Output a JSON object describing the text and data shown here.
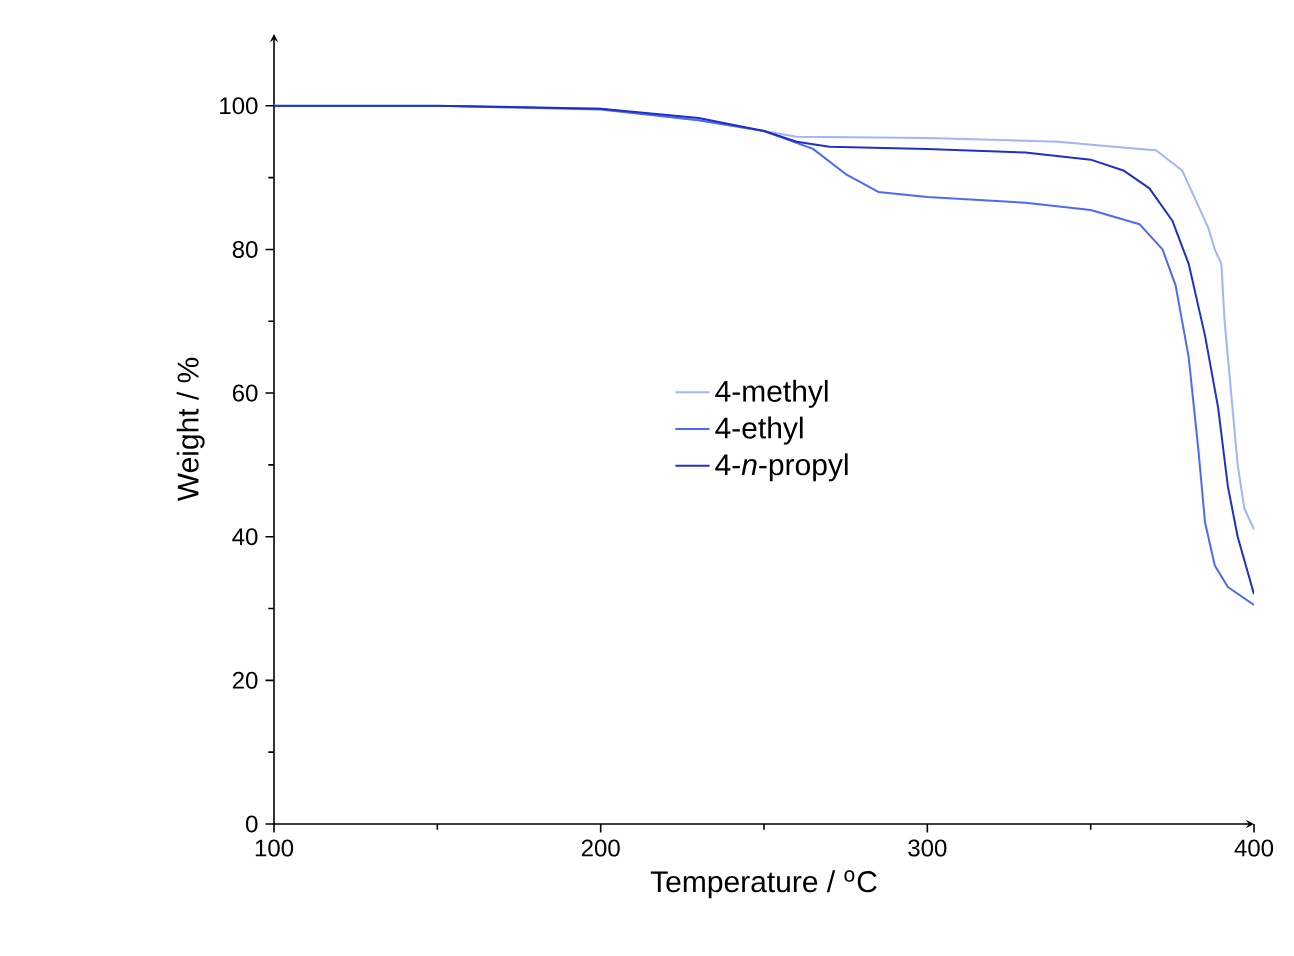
{
  "chart_data": {
    "type": "line",
    "xlabel": "Temperature / $^{o}$C",
    "ylabel": "Weight / %",
    "xlim": [
      100,
      400
    ],
    "ylim": [
      0,
      110
    ],
    "xticks": [
      100,
      200,
      300,
      400
    ],
    "yticks": [
      0,
      20,
      40,
      60,
      80,
      100
    ],
    "legend": "center",
    "grid": false,
    "marker": "none",
    "line_style": "solid",
    "series": [
      {
        "name": "4-methyl",
        "color": "#a3b3ff",
        "x": [
          100,
          150,
          200,
          230,
          250,
          260,
          300,
          340,
          365,
          370,
          378,
          382,
          386,
          388,
          390,
          391,
          393,
          395,
          397,
          400
        ],
        "values": [
          100,
          100,
          99.6,
          98,
          96.5,
          95.7,
          95.5,
          95,
          94,
          93.8,
          91,
          87,
          83,
          80,
          78,
          70,
          60,
          50,
          44,
          41
        ]
      },
      {
        "name": "4-ethyl",
        "color": "#4d6af5",
        "x": [
          100,
          150,
          200,
          230,
          250,
          265,
          275,
          285,
          300,
          330,
          350,
          365,
          372,
          376,
          380,
          383,
          385,
          388,
          392,
          400
        ],
        "values": [
          100,
          100,
          99.5,
          98,
          96.5,
          94,
          90.5,
          88,
          87.3,
          86.5,
          85.5,
          83.5,
          80,
          75,
          65,
          52,
          42,
          36,
          33,
          30.5
        ]
      },
      {
        "name": "4-*n*-propyl",
        "color": "#1f2fc8",
        "x": [
          100,
          150,
          200,
          230,
          250,
          260,
          270,
          300,
          330,
          350,
          360,
          368,
          375,
          380,
          385,
          389,
          392,
          395,
          400
        ],
        "values": [
          100,
          100,
          99.6,
          98.3,
          96.5,
          95,
          94.3,
          94,
          93.5,
          92.5,
          91,
          88.5,
          84,
          78,
          68,
          58,
          47,
          40,
          32
        ]
      }
    ]
  }
}
